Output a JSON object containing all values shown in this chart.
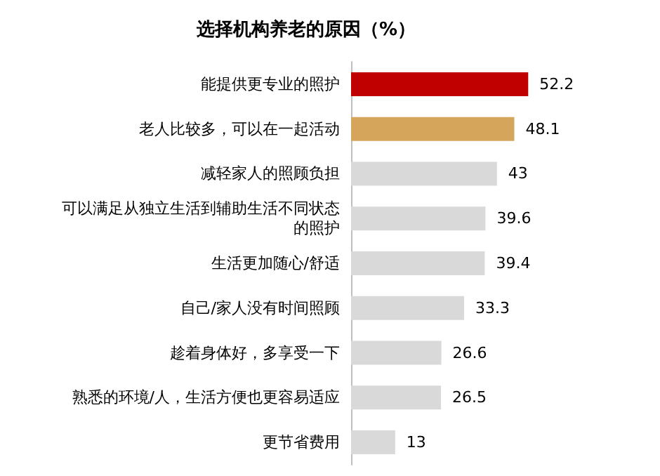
{
  "chart_data": {
    "type": "bar",
    "orientation": "horizontal",
    "title": "选择机构养老的原因（%）",
    "categories": [
      "能提供更专业的照护",
      "老人比较多，可以在一起活动",
      "减轻家人的照顾负担",
      "可以满足从独立生活到辅助生活不同状态的照护",
      "生活更加随心/舒适",
      "自己/家人没有时间照顾",
      "趁着身体好，多享受一下",
      "熟悉的环境/人，生活方便也更容易适应",
      "更节省费用"
    ],
    "values": [
      52.2,
      48.1,
      43,
      39.6,
      39.4,
      33.3,
      26.6,
      26.5,
      13
    ],
    "colors": [
      "#c00000",
      "#d4a55a",
      "#d9d9d9",
      "#d9d9d9",
      "#d9d9d9",
      "#d9d9d9",
      "#d9d9d9",
      "#d9d9d9",
      "#d9d9d9"
    ],
    "data_labels": true
  }
}
